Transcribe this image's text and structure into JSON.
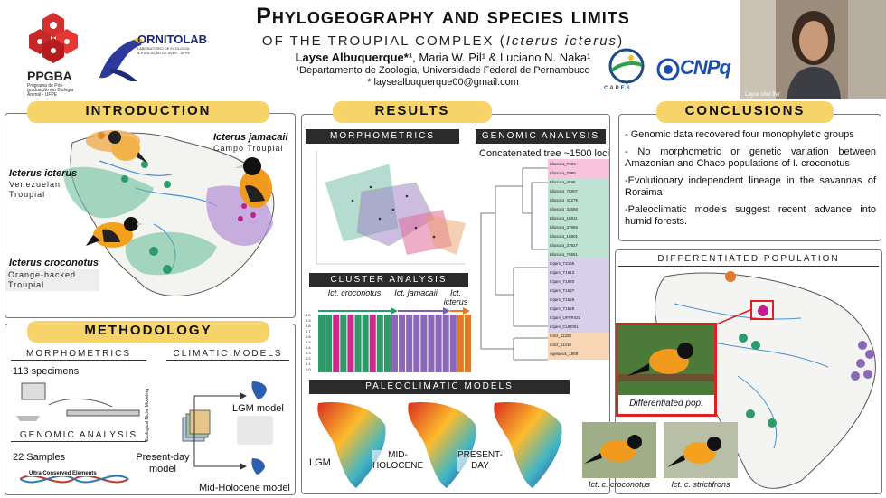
{
  "header": {
    "title": "Phylogeography and species limits",
    "subtitle_prefix": "OF THE TROUPIAL COMPLEX (",
    "subtitle_species": "Icterus icterus",
    "subtitle_suffix": ")",
    "author_main": "Layse Albuquerque*¹",
    "authors_rest": ", Maria W. Pil¹ & Luciano N. Naka¹",
    "department": "¹Departamento de Zoologia, Universidade Federal de Pernambuco",
    "email": "* laysealbuquerque00@gmail.com",
    "logos": {
      "ppgba": "PPGBA",
      "ppgba_sub": "Programa de Pós-graduação em Biologia Animal - UFPE",
      "ornitolab": "ORNITOLAB",
      "ornitolab_sub": "LABORATÓRIO DE ECOLOGIA & EVOLUÇÃO DE AVES - UFPE",
      "capes": "CAPES",
      "cnpq": "CNPq"
    },
    "video_label": "Layse shei ffer"
  },
  "introduction": {
    "banner": "INTRODUCTION",
    "species": [
      {
        "name": "Icterus jamacaii",
        "common": "Campo Troupial"
      },
      {
        "name": "Icterus icterus",
        "common": "Venezuelan Troupial"
      },
      {
        "name": "Icterus croconotus",
        "common": "Orange-backed Troupial"
      }
    ]
  },
  "methodology": {
    "banner": "METHODOLOGY",
    "morphometrics_label": "MORPHOMETRICS",
    "specimens": "113 specimens",
    "climatic_label": "CLIMATIC MODELS",
    "genomic_label": "GENOMIC ANALYSIS",
    "samples": "22 Samples",
    "ultra": "Ultra Conserved Elements",
    "axis_label": "Ecological Niche Modeling",
    "lgm": "LGM model",
    "present": "Present-day model",
    "midholocene": "Mid-Holocene model"
  },
  "results": {
    "banner": "RESULTS",
    "morphometrics_label": "MORPHOMETRICS",
    "genomic_label": "GENOMIC ANALYSIS",
    "tree_caption": "Concatenated tree ~1500 loci",
    "cluster_label": "CLUSTER ANALYSIS",
    "cluster_groups": [
      "Ict. croconotus",
      "Ict. jamacaii",
      "Ict. icterus"
    ],
    "cluster_yticks": [
      "1.0",
      "0.9",
      "0.8",
      "0.7",
      "0.6",
      "0.5",
      "0.4",
      "0.3",
      "0.2",
      "0.1",
      "0.0"
    ],
    "paleo_label": "PALEOCLIMATIC MODELS",
    "paleo_maps": [
      "LGM",
      "MID-HOLOCENE",
      "PRESENT-DAY"
    ],
    "tips": [
      "Idiosora_T999",
      "Idiosora_T995",
      "Idiosora_4585",
      "Idiosora_75807",
      "Idiosora_32279",
      "Idiosora_32656",
      "Idiosora_18811",
      "Idiosora_37866",
      "Idiosora_18801",
      "Idiosora_37927",
      "Idiosora_75551",
      "Ictjam_T2166",
      "Ictjam_T1613",
      "Ictjam_T1620",
      "Ictjam_T1627",
      "Ictjam_T1629",
      "Ictjam_T1628",
      "Ictjam_UFPR422",
      "Ictjam_CUR001",
      "Ictict_11320",
      "Ictict_11410",
      "Agelaeus_1869"
    ]
  },
  "conclusions": {
    "banner": "CONCLUSIONS",
    "items": [
      "- Genomic data recovered four monophyletic groups",
      "- No morphometric or genetic variation between Amazonian and Chaco populations of I. croconotus",
      "-Evolutionary independent lineage in the savannas of Roraima",
      "-Paleoclimatic models suggest recent advance into humid forests."
    ]
  },
  "differentiated": {
    "label": "DIFFERENTIATED POPULATION",
    "inset_caption": "Differentiated pop.",
    "photos": [
      "Ict. c. croconotus",
      "Ict. c. strictifrons"
    ]
  },
  "colors": {
    "banner": "#f7d46a",
    "dark": "#2b2b2b",
    "green": "#2e9a6a",
    "purple": "#8b67b8",
    "magenta": "#d12a8e",
    "orange": "#e07a2a",
    "inset": "#e02020"
  }
}
